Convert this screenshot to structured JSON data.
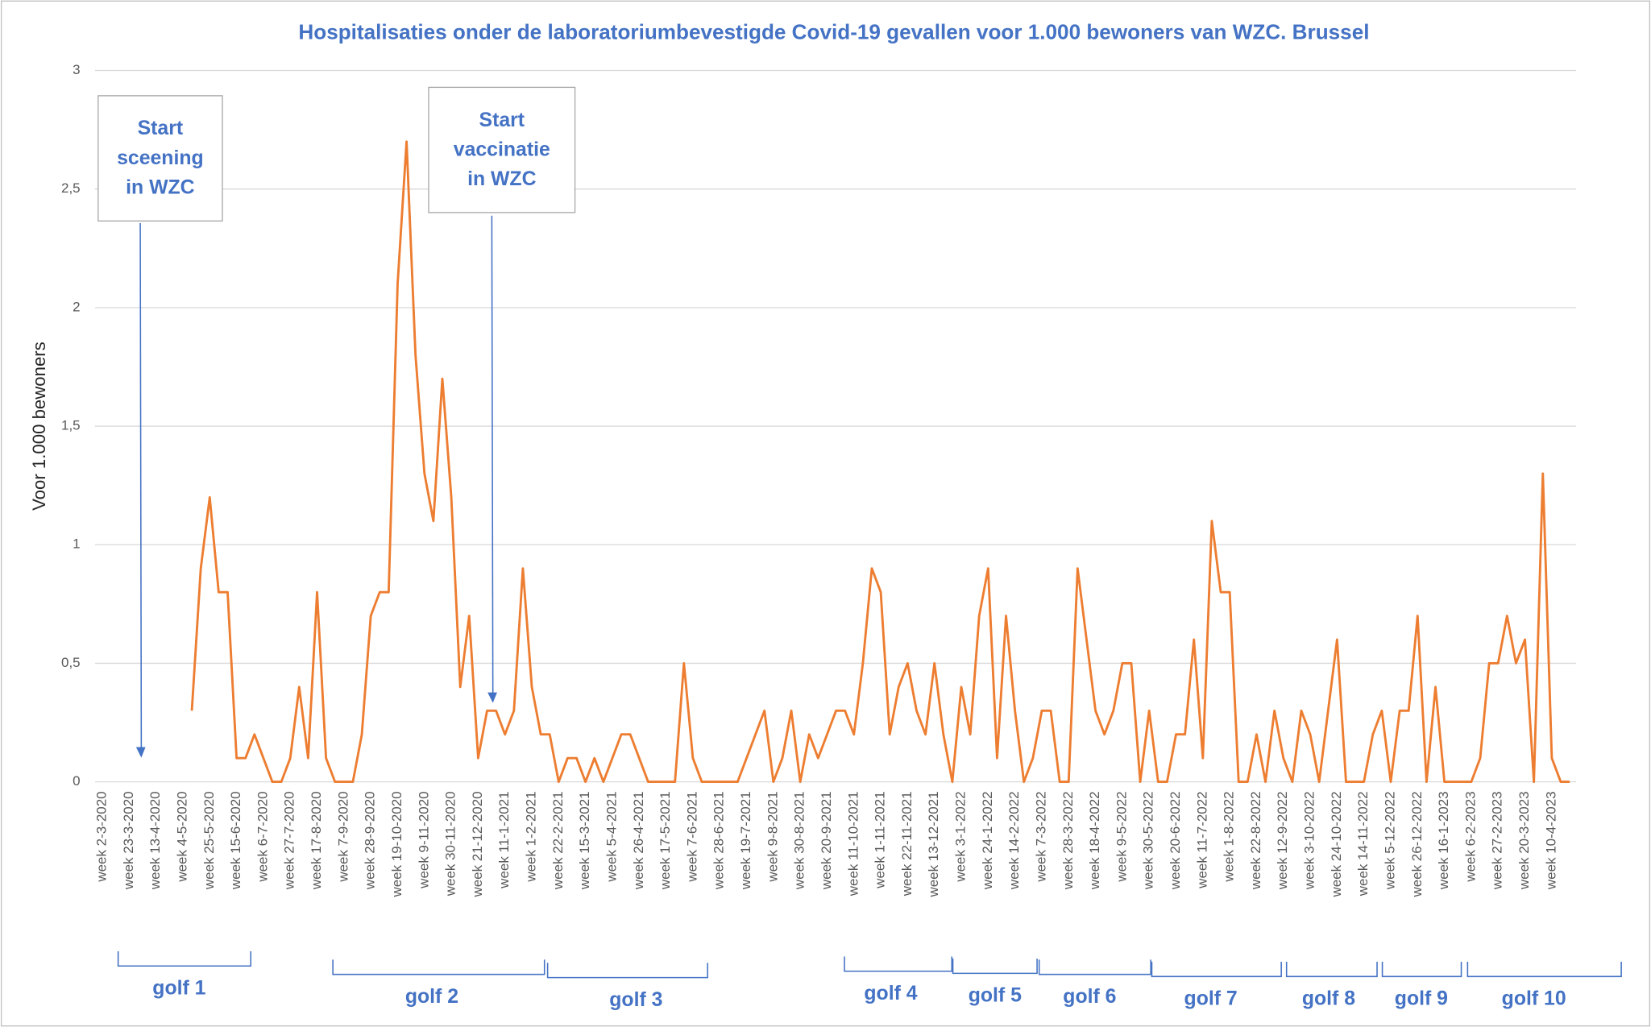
{
  "chart_data": {
    "type": "line",
    "title": "Hospitalisaties onder de laboratoriumbevestigde Covid-19 gevallen voor 1.000 bewoners van WZC. Brussel",
    "y_label": "Voor 1.000 bewoners",
    "categories": [
      "week 2-3-2020",
      null,
      null,
      "week 23-3-2020",
      null,
      null,
      "week 13-4-2020",
      null,
      null,
      "week 4-5-2020",
      null,
      null,
      "week 25-5-2020",
      null,
      null,
      "week 15-6-2020",
      null,
      null,
      "week 6-7-2020",
      null,
      null,
      "week 27-7-2020",
      null,
      null,
      "week 17-8-2020",
      null,
      null,
      "week 7-9-2020",
      null,
      null,
      "week 28-9-2020",
      null,
      null,
      "week 19-10-2020",
      null,
      null,
      "week 9-11-2020",
      null,
      null,
      "week 30-11-2020",
      null,
      null,
      "week 21-12-2020",
      null,
      null,
      "week 11-1-2021",
      null,
      null,
      "week 1-2-2021",
      null,
      null,
      "week 22-2-2021",
      null,
      null,
      "week 15-3-2021",
      null,
      null,
      "week 5-4-2021",
      null,
      null,
      "week 26-4-2021",
      null,
      null,
      "week 17-5-2021",
      null,
      null,
      "week 7-6-2021",
      null,
      null,
      "week 28-6-2021",
      null,
      null,
      "week 19-7-2021",
      null,
      null,
      "week 9-8-2021",
      null,
      null,
      "week 30-8-2021",
      null,
      null,
      "week 20-9-2021",
      null,
      null,
      "week 11-10-2021",
      null,
      null,
      "week 1-11-2021",
      null,
      null,
      "week 22-11-2021",
      null,
      null,
      "week 13-12-2021",
      null,
      null,
      "week 3-1-2022",
      null,
      null,
      "week 24-1-2022",
      null,
      null,
      "week 14-2-2022",
      null,
      null,
      "week 7-3-2022",
      null,
      null,
      "week 28-3-2022",
      null,
      null,
      "week 18-4-2022",
      null,
      null,
      "week 9-5-2022",
      null,
      null,
      "week 30-5-2022",
      null,
      null,
      "week 20-6-2022",
      null,
      null,
      "week 11-7-2022",
      null,
      null,
      "week 1-8-2022",
      null,
      null,
      "week 22-8-2022",
      null,
      null,
      "week 12-9-2022",
      null,
      null,
      "week 3-10-2022",
      null,
      null,
      "week 24-10-2022",
      null,
      null,
      "week 14-11-2022",
      null,
      null,
      "week 5-12-2022",
      null,
      null,
      "week 26-12-2022",
      null,
      null,
      "week 16-1-2023",
      null,
      null,
      "week 6-2-2023",
      null,
      null,
      "week 27-2-2023",
      null,
      null,
      "week 20-3-2023",
      null,
      null,
      "week 10-4-2023",
      null,
      null
    ],
    "series": [
      {
        "color": "#ed7d31",
        "values": [
          null,
          null,
          null,
          null,
          null,
          null,
          null,
          null,
          null,
          null,
          0.3,
          0.9,
          1.2,
          0.8,
          0.8,
          0.1,
          0.1,
          0.2,
          0.1,
          0,
          0,
          0.1,
          0.4,
          0.1,
          0.8,
          0.1,
          0,
          0,
          0,
          0.2,
          0.7,
          0.8,
          0.8,
          2.1,
          2.7,
          1.8,
          1.3,
          1.1,
          1.7,
          1.2,
          0.4,
          0.7,
          0.1,
          0.3,
          0.3,
          0.2,
          0.3,
          0.9,
          0.4,
          0.2,
          0.2,
          0,
          0.1,
          0.1,
          0,
          0.1,
          0,
          0.1,
          0.2,
          0.2,
          0.1,
          0,
          0,
          0,
          0,
          0.5,
          0.1,
          0,
          0,
          0,
          0,
          0,
          0.1,
          0.2,
          0.3,
          0,
          0.1,
          0.3,
          0,
          0.2,
          0.1,
          0.2,
          0.3,
          0.3,
          0.2,
          0.5,
          0.9,
          0.8,
          0.2,
          0.4,
          0.5,
          0.3,
          0.2,
          0.5,
          0.2,
          0,
          0.4,
          0.2,
          0.7,
          0.9,
          0.1,
          0.7,
          0.3,
          0,
          0.1,
          0.3,
          0.3,
          0,
          0,
          0.9,
          0.6,
          0.3,
          0.2,
          0.3,
          0.5,
          0.5,
          0,
          0.3,
          0,
          0,
          0.2,
          0.2,
          0.6,
          0.1,
          1.1,
          0.8,
          0.8,
          0,
          0,
          0.2,
          0,
          0.3,
          0.1,
          0,
          0.3,
          0.2,
          0,
          0.3,
          0.6,
          0,
          0,
          0,
          0.2,
          0.3,
          0,
          0.3,
          0.3,
          0.7,
          0,
          0.4,
          0,
          0,
          0,
          0,
          0.1,
          0.5,
          0.5,
          0.7,
          0.5,
          0.6,
          0,
          1.3,
          0.1,
          0,
          0
        ]
      }
    ],
    "ylim": [
      0,
      3
    ],
    "yticks": [
      0,
      {
        "value": 0.5,
        "label": "0,5"
      },
      1,
      {
        "value": 1.5,
        "label": "1,5"
      },
      2,
      {
        "value": 2.5,
        "label": "2,5"
      },
      3
    ],
    "grid": true,
    "annotations": [
      {
        "lines": [
          "Start",
          "sceening",
          "in WZC"
        ]
      },
      {
        "lines": [
          "Start",
          "vaccinatie",
          "in WZC"
        ]
      }
    ],
    "waves": [
      "golf 1",
      "golf 2",
      "golf 3",
      "golf 4",
      "golf 5",
      "golf 6",
      "golf 7",
      "golf 8",
      "golf 9",
      "golf 10"
    ]
  }
}
